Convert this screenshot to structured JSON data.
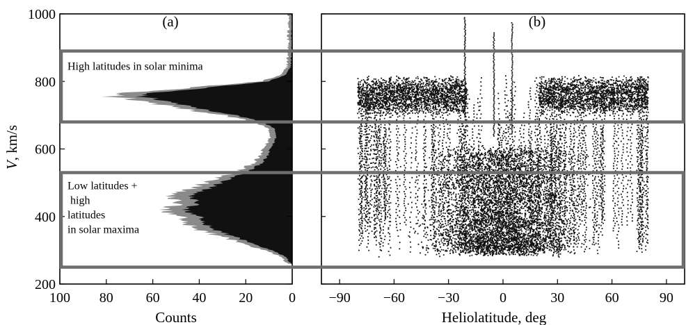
{
  "chart_data": [
    {
      "type": "area",
      "panel_label": "(a)",
      "xlabel": "Counts",
      "ylabel_italic": "V",
      "ylabel_rest": ", km/s",
      "x_reversed": true,
      "xlim": [
        100,
        0
      ],
      "ylim": [
        200,
        1000
      ],
      "x_ticks": [
        100,
        80,
        60,
        40,
        20,
        0
      ],
      "x_tick_labels": [
        "100",
        "80",
        "60",
        "40",
        "20",
        "0"
      ],
      "y_ticks": [
        200,
        400,
        600,
        800,
        1000
      ],
      "y_tick_labels": [
        "200",
        "400",
        "600",
        "800",
        "1000"
      ],
      "series": [
        {
          "v": [
            260,
            280,
            300,
            320,
            340,
            360,
            380,
            400,
            420,
            440,
            460,
            480,
            500,
            520,
            540,
            560,
            580,
            600,
            620,
            640,
            660,
            680,
            700,
            720,
            740,
            760,
            780,
            800,
            820,
            840,
            860,
            880,
            900,
            950,
            1000
          ],
          "counts": [
            1,
            3,
            10,
            20,
            29,
            38,
            44,
            46,
            54,
            47,
            50,
            43,
            36,
            28,
            20,
            15,
            12,
            11,
            9,
            8,
            9,
            15,
            29,
            48,
            62,
            78,
            45,
            12,
            3,
            1,
            0.5,
            0.5,
            0.3,
            0.2,
            0.1
          ]
        }
      ]
    },
    {
      "type": "scatter",
      "panel_label": "(b)",
      "xlabel": "Heliolatitude, deg",
      "xlim": [
        -100,
        100
      ],
      "ylim": [
        200,
        1000
      ],
      "x_ticks": [
        -90,
        -60,
        -30,
        0,
        30,
        60,
        90
      ],
      "x_tick_labels": [
        "−90",
        "−60",
        "−30",
        "0",
        "30",
        "60",
        "90"
      ],
      "fast_wind_band_v": [
        720,
        800
      ],
      "fast_wind_latitude_abs_range": [
        20,
        80
      ],
      "slow_wind_band_v": [
        300,
        600
      ],
      "slow_wind_latitude_range": [
        -35,
        35
      ],
      "spikes": [
        {
          "lat": -21,
          "v_min": 700,
          "v_max": 995
        },
        {
          "lat": -5,
          "v_min": 640,
          "v_max": 950
        },
        {
          "lat": 5,
          "v_min": 650,
          "v_max": 980
        }
      ]
    }
  ],
  "regions": [
    {
      "name": "High latitudes in solar minima",
      "v_min": 680,
      "v_max": 890,
      "label_lines": [
        "High latitudes in solar minima"
      ]
    },
    {
      "name": "Low latitudes + high latitudes in solar maxima",
      "v_min": 250,
      "v_max": 530,
      "label_lines": [
        "Low latitudes +",
        " high",
        "latitudes",
        "in solar maxima"
      ]
    }
  ],
  "colors": {
    "data": "#111111",
    "data_edge": "#8a8a8a",
    "region_frame": "#6e6e6e",
    "axis": "#000000"
  }
}
